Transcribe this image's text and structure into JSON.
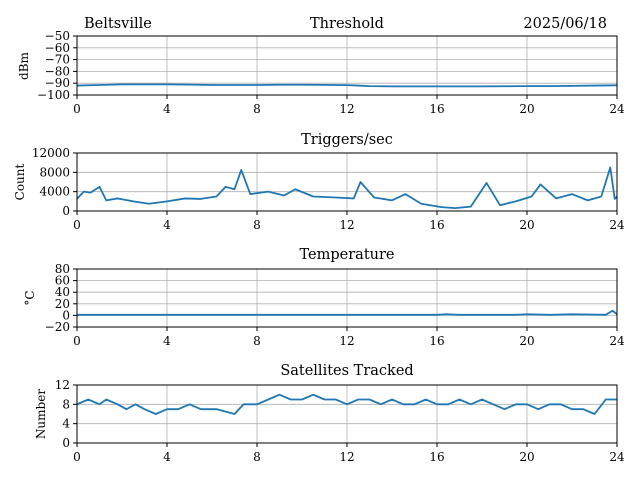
{
  "header": {
    "station": "Beltsville",
    "date": "2025/06/18"
  },
  "style": {
    "series_color": "#1f77b4",
    "grid_color": "#b0b0b0",
    "axes_color": "#000000"
  },
  "chart_data": [
    {
      "type": "line",
      "title": "Threshold",
      "ylabel": "dBm",
      "xlabel": "",
      "xlim": [
        0,
        24
      ],
      "ylim": [
        -100,
        -50
      ],
      "xticks": [
        0,
        4,
        8,
        12,
        16,
        20,
        24
      ],
      "yticks": [
        -100,
        -90,
        -80,
        -70,
        -60,
        -50
      ],
      "ytick_labels": [
        "−100",
        "−90",
        "−80",
        "−70",
        "−60",
        "−50"
      ],
      "grid": true,
      "series": [
        {
          "x": [
            0,
            1,
            2,
            3,
            4,
            5,
            6,
            7,
            8,
            9,
            10,
            11,
            12,
            12.5,
            13,
            14,
            15,
            16,
            17,
            18,
            19,
            20,
            21,
            22,
            23,
            24
          ],
          "y": [
            -92,
            -91.5,
            -91,
            -91,
            -91,
            -91.2,
            -91.5,
            -91.5,
            -91.5,
            -91.3,
            -91.3,
            -91.4,
            -91.6,
            -92,
            -92.5,
            -92.7,
            -92.7,
            -92.7,
            -92.7,
            -92.7,
            -92.6,
            -92.5,
            -92.5,
            -92.3,
            -92,
            -91.8
          ]
        }
      ]
    },
    {
      "type": "line",
      "title": "Triggers/sec",
      "ylabel": "Count",
      "xlabel": "",
      "xlim": [
        0,
        24
      ],
      "ylim": [
        0,
        12000
      ],
      "xticks": [
        0,
        4,
        8,
        12,
        16,
        20,
        24
      ],
      "yticks": [
        0,
        4000,
        8000,
        12000
      ],
      "ytick_labels": [
        "0",
        "4000",
        "8000",
        "12000"
      ],
      "grid": true,
      "series": [
        {
          "x": [
            0,
            0.3,
            0.6,
            1.0,
            1.3,
            1.8,
            2.5,
            3.2,
            4.0,
            4.8,
            5.5,
            6.2,
            6.6,
            7.0,
            7.3,
            7.7,
            8.5,
            9.2,
            9.7,
            10.5,
            11.5,
            12.3,
            12.6,
            13.2,
            14.0,
            14.6,
            15.3,
            16.2,
            16.8,
            17.5,
            18.2,
            18.8,
            19.5,
            20.2,
            20.6,
            21.3,
            22.0,
            22.7,
            23.3,
            23.7,
            23.9,
            24.0
          ],
          "y": [
            2500,
            4000,
            3800,
            5000,
            2200,
            2600,
            2000,
            1500,
            2000,
            2600,
            2500,
            3000,
            5000,
            4500,
            8500,
            3500,
            4000,
            3200,
            4500,
            3000,
            2800,
            2600,
            6000,
            2800,
            2200,
            3500,
            1500,
            800,
            600,
            900,
            5800,
            1200,
            2000,
            3000,
            5500,
            2600,
            3500,
            2200,
            3000,
            9000,
            2500,
            3000
          ]
        }
      ]
    },
    {
      "type": "line",
      "title": "Temperature",
      "ylabel": "°C",
      "xlabel": "",
      "xlim": [
        0,
        24
      ],
      "ylim": [
        -20,
        80
      ],
      "xticks": [
        0,
        4,
        8,
        12,
        16,
        20,
        24
      ],
      "yticks": [
        -20,
        0,
        20,
        40,
        60,
        80
      ],
      "ytick_labels": [
        "−20",
        "0",
        "20",
        "40",
        "60",
        "80"
      ],
      "grid": true,
      "series": [
        {
          "x": [
            0,
            4,
            8,
            12,
            16,
            16.4,
            17,
            19.5,
            20,
            21,
            22,
            23.5,
            23.8,
            24
          ],
          "y": [
            1,
            1,
            1,
            1,
            1,
            2,
            1,
            1,
            2,
            1,
            2,
            1,
            8,
            2
          ]
        }
      ]
    },
    {
      "type": "line",
      "title": "Satellites Tracked",
      "ylabel": "Number",
      "xlabel": "",
      "xlim": [
        0,
        24
      ],
      "ylim": [
        0,
        12
      ],
      "xticks": [
        0,
        4,
        8,
        12,
        16,
        20,
        24
      ],
      "yticks": [
        0,
        4,
        8,
        12
      ],
      "ytick_labels": [
        "0",
        "4",
        "8",
        "12"
      ],
      "grid": true,
      "series": [
        {
          "x": [
            0,
            0.5,
            1.0,
            1.3,
            1.8,
            2.2,
            2.6,
            3.0,
            3.5,
            4.0,
            4.5,
            5.0,
            5.5,
            6.2,
            7.0,
            7.4,
            8.0,
            8.5,
            9.0,
            9.5,
            10.0,
            10.5,
            11.0,
            11.5,
            12.0,
            12.5,
            13.0,
            13.5,
            14.0,
            14.5,
            15.0,
            15.5,
            16.0,
            16.5,
            17.0,
            17.5,
            18.0,
            18.5,
            19.0,
            19.5,
            20.0,
            20.5,
            21.0,
            21.5,
            22.0,
            22.5,
            23.0,
            23.5,
            24.0
          ],
          "y": [
            8,
            9,
            8,
            9,
            8,
            7,
            8,
            7,
            6,
            7,
            7,
            8,
            7,
            7,
            6,
            8,
            8,
            9,
            10,
            9,
            9,
            10,
            9,
            9,
            8,
            9,
            9,
            8,
            9,
            8,
            8,
            9,
            8,
            8,
            9,
            8,
            9,
            8,
            7,
            8,
            8,
            7,
            8,
            8,
            7,
            7,
            6,
            9,
            9
          ]
        }
      ]
    }
  ]
}
